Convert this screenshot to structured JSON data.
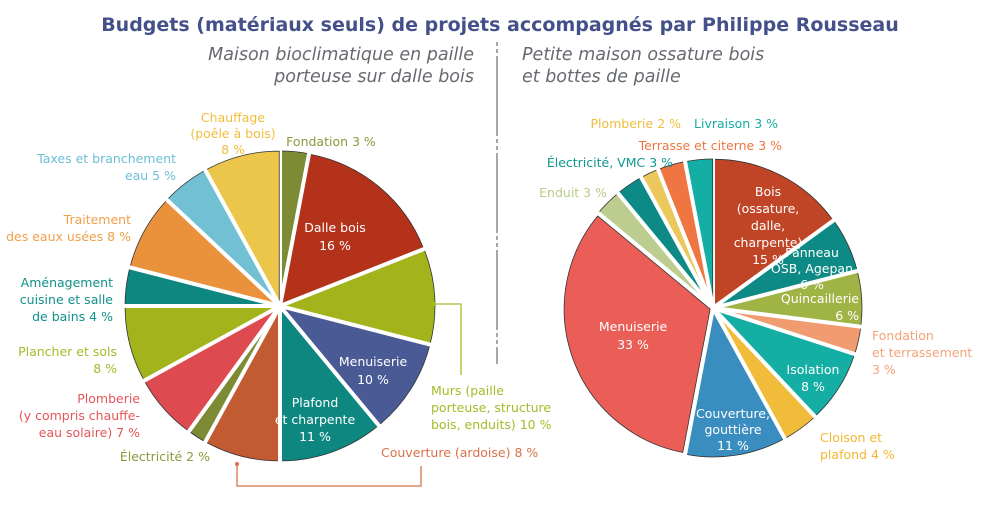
{
  "chart_data": [
    {
      "type": "pie",
      "title": "Budgets (matériaux seuls) de projets accompagnés par Philippe Rousseau",
      "subtitle": [
        "Maison bioclimatique en paille",
        "porteuse sur dalle bois"
      ],
      "start": "top",
      "direction": "clockwise",
      "slices": [
        {
          "label": "Fondation",
          "value": 3,
          "color": "#7d8b35",
          "text": [
            "Fondation 3 %"
          ],
          "inside": false,
          "label_color": "#8a9a3a"
        },
        {
          "label": "Dalle bois",
          "value": 16,
          "color": "#b5321a",
          "text": [
            "Dalle bois",
            "16 %"
          ],
          "inside": true
        },
        {
          "label": "Murs (paille porteuse, structure bois, enduits)",
          "value": 10,
          "color": "#a2b31b",
          "text": [
            "Murs (paille",
            "porteuse, structure",
            "bois, enduits) 10 %"
          ],
          "inside": false,
          "label_color": "#a7ba2a"
        },
        {
          "label": "Menuiserie",
          "value": 10,
          "color": "#4a5a95",
          "text": [
            "Menuiserie",
            "10 %"
          ],
          "inside": true
        },
        {
          "label": "Plafond et charpente",
          "value": 11,
          "color": "#0e8781",
          "text": [
            "Plafond",
            "et charpente",
            "11 %"
          ],
          "inside": true
        },
        {
          "label": "Couverture (ardoise)",
          "value": 8,
          "color": "#c35b32",
          "text": [
            "Couverture (ardoise) 8 %"
          ],
          "inside": false,
          "label_color": "#d8714a"
        },
        {
          "label": "Électricité",
          "value": 2,
          "color": "#7d8b35",
          "text": [
            "Électricité 2 %"
          ],
          "inside": false,
          "label_color": "#8a9a3a"
        },
        {
          "label": "Plomberie (y compris chauffe-eau solaire)",
          "value": 7,
          "color": "#dd4a4f",
          "text": [
            "Plomberie",
            "(y compris chauffe-",
            "eau solaire) 7 %"
          ],
          "inside": false,
          "label_color": "#e5555a"
        },
        {
          "label": "Plancher et sols",
          "value": 8,
          "color": "#a2b31b",
          "text": [
            "Plancher et sols",
            "8 %"
          ],
          "inside": false,
          "label_color": "#a7ba2a"
        },
        {
          "label": "Aménagement cuisine et salle de bains",
          "value": 4,
          "color": "#0e8781",
          "text": [
            "Aménagement",
            "cuisine et salle",
            "de bains 4 %"
          ],
          "inside": false,
          "label_color": "#11908a"
        },
        {
          "label": "Traitement des eaux usées",
          "value": 8,
          "color": "#ea923b",
          "text": [
            "Traitement",
            "des eaux usées 8 %"
          ],
          "inside": false,
          "label_color": "#f0a048"
        },
        {
          "label": "Taxes et branchement eau",
          "value": 5,
          "color": "#72c0d4",
          "text": [
            "Taxes et branchement",
            "eau 5 %"
          ],
          "inside": false,
          "label_color": "#6cbfd6"
        },
        {
          "label": "Chauffage (poêle à bois)",
          "value": 8,
          "color": "#ecc64a",
          "text": [
            "Chauffage",
            "(poêle à bois)",
            "8 %"
          ],
          "inside": false,
          "label_color": "#f0bd3c"
        }
      ]
    },
    {
      "type": "pie",
      "subtitle": [
        "Petite maison ossature bois",
        "et bottes de paille"
      ],
      "start": "top",
      "direction": "clockwise",
      "slices": [
        {
          "label": "Bois (ossature, dalle, charpente)",
          "value": 15,
          "color": "#c04426",
          "text": [
            "Bois",
            "(ossature,",
            "dalle,",
            "charpente)",
            "15 %"
          ],
          "inside": true
        },
        {
          "label": "Panneau OSB, Agepan",
          "value": 6,
          "color": "#0d8a86",
          "text": [
            "Panneau",
            "OSB, Agepan",
            "6 %"
          ],
          "inside": true
        },
        {
          "label": "Quincaillerie",
          "value": 6,
          "color": "#a0b446",
          "text": [
            "Quincaillerie",
            "6 %"
          ],
          "inside": true
        },
        {
          "label": "Fondation et terrassement",
          "value": 3,
          "color": "#f09c70",
          "text": [
            "Fondation",
            "et terrassement",
            "3 %"
          ],
          "inside": false,
          "label_color": "#f3a27a"
        },
        {
          "label": "Isolation",
          "value": 8,
          "color": "#14aea5",
          "text": [
            "Isolation",
            "8 %"
          ],
          "inside": true
        },
        {
          "label": "Cloison et plafond",
          "value": 4,
          "color": "#f0bc3a",
          "text": [
            "Cloison et",
            "plafond 4 %"
          ],
          "inside": false,
          "label_color": "#f2b830"
        },
        {
          "label": "Couverture, gouttière",
          "value": 11,
          "color": "#3a8dbf",
          "text": [
            "Couverture,",
            "gouttière",
            "11 %"
          ],
          "inside": true
        },
        {
          "label": "Menuiserie",
          "value": 33,
          "color": "#ea5e57",
          "text": [
            "Menuiserie",
            "33 %"
          ],
          "inside": true
        },
        {
          "label": "Enduit",
          "value": 3,
          "color": "#bccd8f",
          "text": [
            "Enduit 3 %"
          ],
          "inside": false,
          "label_color": "#b8cb8a"
        },
        {
          "label": "Électricité, VMC",
          "value": 3,
          "color": "#0d8a86",
          "text": [
            "Électricité, VMC 3 %"
          ],
          "inside": false,
          "label_color": "#0e9690"
        },
        {
          "label": "Plomberie",
          "value": 2,
          "color": "#ecc85c",
          "text": [
            "Plomberie 2 %"
          ],
          "inside": false,
          "label_color": "#f0bd3c"
        },
        {
          "label": "Terrasse et citerne",
          "value": 3,
          "color": "#ef7543",
          "text": [
            "Terrasse et citerne 3 %"
          ],
          "inside": false,
          "label_color": "#ef7543"
        },
        {
          "label": "Livraison",
          "value": 3,
          "color": "#14aea5",
          "text": [
            "Livraison 3 %"
          ],
          "inside": false,
          "label_color": "#14aea5"
        }
      ]
    }
  ],
  "colors": {
    "title": "#44508a",
    "subtitle": "#666a70",
    "divider": "#8a8a8a"
  }
}
